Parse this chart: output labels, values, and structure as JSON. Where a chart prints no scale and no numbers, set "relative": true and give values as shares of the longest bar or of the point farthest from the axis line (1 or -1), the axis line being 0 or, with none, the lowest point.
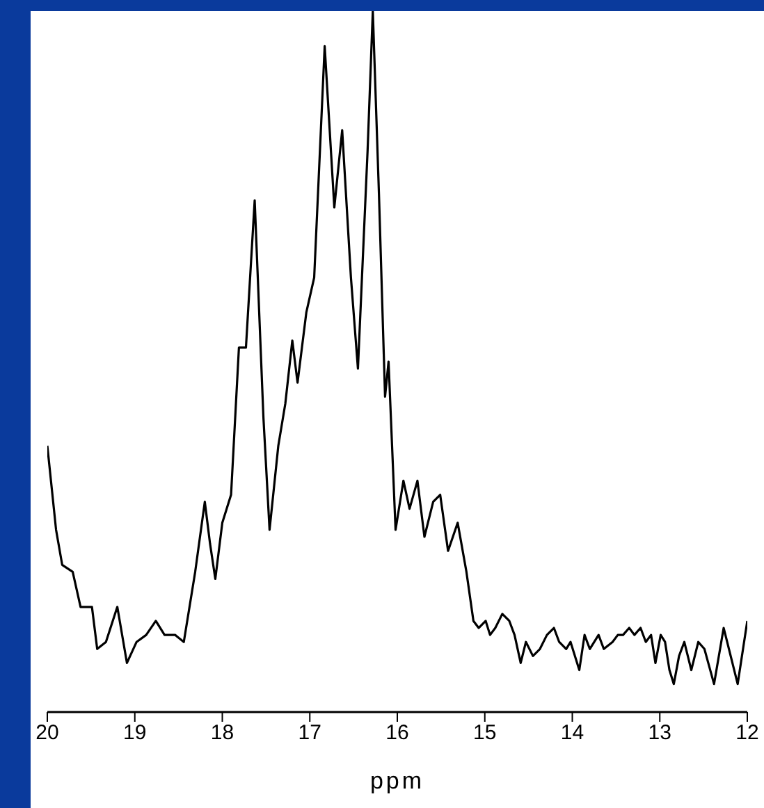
{
  "chart_data": {
    "type": "line",
    "xlabel": "ppm",
    "relative": true,
    "xlim": [
      20,
      12
    ],
    "xticks": [
      20,
      19,
      18,
      17,
      16,
      15,
      14,
      13,
      12
    ],
    "marker": "none",
    "line_style": "solid",
    "grid": false,
    "legend": false,
    "series": [
      {
        "color": "#000000",
        "x": [
          20.0,
          19.9,
          19.83,
          19.71,
          19.62,
          19.55,
          19.49,
          19.43,
          19.33,
          19.2,
          19.09,
          18.98,
          18.87,
          18.76,
          18.66,
          18.54,
          18.44,
          18.31,
          18.2,
          18.14,
          18.08,
          18.0,
          17.9,
          17.81,
          17.73,
          17.63,
          17.53,
          17.46,
          17.36,
          17.28,
          17.2,
          17.14,
          17.04,
          16.95,
          16.83,
          16.72,
          16.63,
          16.53,
          16.45,
          16.34,
          16.28,
          16.21,
          16.14,
          16.1,
          16.02,
          15.93,
          15.86,
          15.77,
          15.69,
          15.59,
          15.51,
          15.42,
          15.31,
          15.21,
          15.13,
          15.07,
          14.99,
          14.94,
          14.88,
          14.8,
          14.72,
          14.66,
          14.59,
          14.53,
          14.45,
          14.37,
          14.29,
          14.21,
          14.15,
          14.07,
          14.02,
          13.92,
          13.86,
          13.8,
          13.7,
          13.64,
          13.54,
          13.48,
          13.42,
          13.35,
          13.29,
          13.22,
          13.16,
          13.1,
          13.05,
          12.99,
          12.94,
          12.89,
          12.84,
          12.78,
          12.72,
          12.64,
          12.56,
          12.49,
          12.38,
          12.27,
          12.19,
          12.11,
          12.0
        ],
        "values": [
          0.38,
          0.26,
          0.21,
          0.2,
          0.15,
          0.15,
          0.15,
          0.09,
          0.1,
          0.15,
          0.07,
          0.1,
          0.11,
          0.13,
          0.11,
          0.11,
          0.1,
          0.2,
          0.3,
          0.24,
          0.19,
          0.27,
          0.31,
          0.52,
          0.52,
          0.73,
          0.42,
          0.26,
          0.38,
          0.44,
          0.53,
          0.47,
          0.57,
          0.62,
          0.95,
          0.72,
          0.83,
          0.62,
          0.49,
          0.8,
          1.0,
          0.74,
          0.45,
          0.5,
          0.26,
          0.33,
          0.29,
          0.33,
          0.25,
          0.3,
          0.31,
          0.23,
          0.27,
          0.2,
          0.13,
          0.12,
          0.13,
          0.11,
          0.12,
          0.14,
          0.13,
          0.11,
          0.07,
          0.1,
          0.08,
          0.09,
          0.11,
          0.12,
          0.1,
          0.09,
          0.1,
          0.06,
          0.11,
          0.09,
          0.11,
          0.09,
          0.1,
          0.11,
          0.11,
          0.12,
          0.11,
          0.12,
          0.1,
          0.11,
          0.07,
          0.11,
          0.1,
          0.06,
          0.04,
          0.08,
          0.1,
          0.06,
          0.1,
          0.09,
          0.04,
          0.12,
          0.08,
          0.04,
          0.13
        ]
      }
    ]
  }
}
